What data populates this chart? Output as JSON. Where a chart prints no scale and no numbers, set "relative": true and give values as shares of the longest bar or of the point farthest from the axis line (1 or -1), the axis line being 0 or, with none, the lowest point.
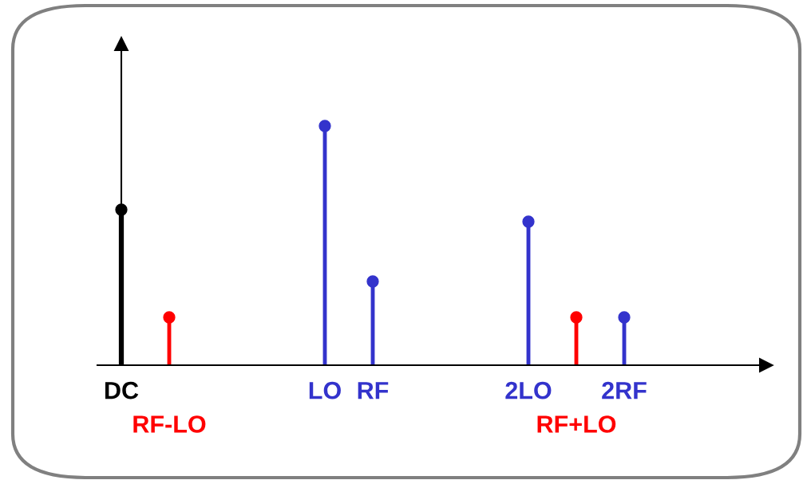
{
  "chart_data": {
    "type": "lollipop",
    "relative": true,
    "marker": "circle",
    "categories": [
      "DC",
      null,
      null,
      null,
      "RF-LO",
      null,
      null,
      null,
      null,
      null,
      null,
      null,
      null,
      null,
      null,
      null,
      null,
      "LO",
      null,
      null,
      null,
      "RF",
      null,
      null,
      null,
      null,
      null,
      null,
      null,
      null,
      null,
      null,
      null,
      null,
      "2LO",
      null,
      null,
      null,
      "RF+LO",
      null,
      null,
      null,
      "2RF"
    ],
    "series": [
      {
        "color": "#000000",
        "values": [
          0.65,
          null,
          null,
          null,
          null,
          null,
          null,
          null,
          null,
          null,
          null,
          null,
          null,
          null,
          null,
          null,
          null,
          null,
          null,
          null,
          null,
          null,
          null,
          null,
          null,
          null,
          null,
          null,
          null,
          null,
          null,
          null,
          null,
          null,
          null,
          null,
          null,
          null,
          null,
          null,
          null,
          null,
          null
        ]
      },
      {
        "color": "#3333cc",
        "values": [
          null,
          null,
          null,
          null,
          null,
          null,
          null,
          null,
          null,
          null,
          null,
          null,
          null,
          null,
          null,
          null,
          null,
          1,
          null,
          null,
          null,
          0.35,
          null,
          null,
          null,
          null,
          null,
          null,
          null,
          null,
          null,
          null,
          null,
          null,
          0.6,
          null,
          null,
          null,
          null,
          null,
          null,
          null,
          0.2
        ]
      },
      {
        "color": "#ff0000",
        "values": [
          null,
          null,
          null,
          null,
          0.2,
          null,
          null,
          null,
          null,
          null,
          null,
          null,
          null,
          null,
          null,
          null,
          null,
          null,
          null,
          null,
          null,
          null,
          null,
          null,
          null,
          null,
          null,
          null,
          null,
          null,
          null,
          null,
          null,
          null,
          null,
          null,
          null,
          null,
          0.2,
          null,
          null,
          null,
          null
        ]
      }
    ]
  }
}
